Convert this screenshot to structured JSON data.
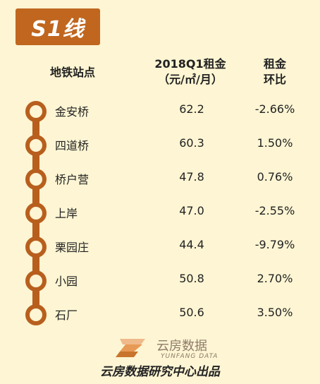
{
  "title": "S1线",
  "headers": {
    "station": "地铁站点",
    "rent_line1": "2018Q1租金",
    "rent_line2": "（元/㎡/月）",
    "change_line1": "租金",
    "change_line2": "环比"
  },
  "stations": [
    {
      "name": "金安桥",
      "rent": "62.2",
      "change": "-2.66%"
    },
    {
      "name": "四道桥",
      "rent": "60.3",
      "change": "1.50%"
    },
    {
      "name": "桥户营",
      "rent": "47.8",
      "change": "0.76%"
    },
    {
      "name": "上岸",
      "rent": "47.0",
      "change": "-2.55%"
    },
    {
      "name": "栗园庄",
      "rent": "44.4",
      "change": "-9.79%"
    },
    {
      "name": "小园",
      "rent": "50.8",
      "change": "2.70%"
    },
    {
      "name": "石厂",
      "rent": "50.6",
      "change": "3.50%"
    }
  ],
  "logo": {
    "name_cn": "云房数据",
    "name_en": "YUNFANG DATA"
  },
  "footer": "云房数据研究中心出品",
  "colors": {
    "background": "#fdf5d3",
    "accent": "#c0661f",
    "line": "#b85f1e"
  }
}
